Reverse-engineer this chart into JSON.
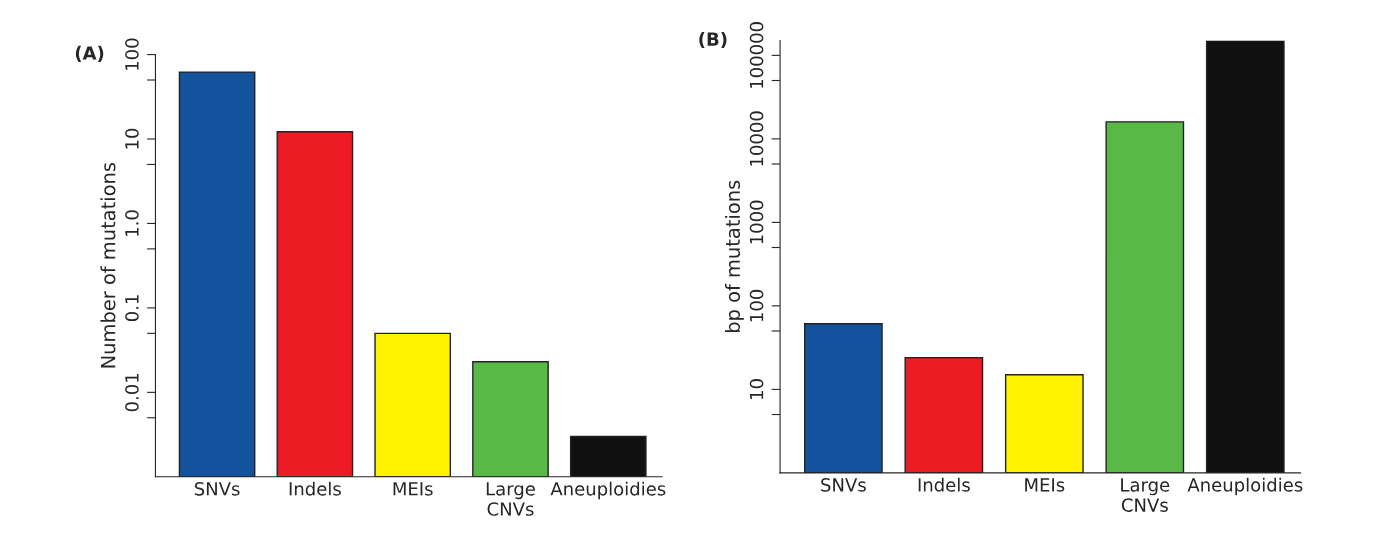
{
  "chart_data": [
    {
      "type": "bar",
      "title": "(A)",
      "ylabel": "Number of mutations",
      "log": "y",
      "categories": [
        "SNVs",
        "Indels",
        "MEIs",
        "Large\nCNVs",
        "Aneuploidies"
      ],
      "values": [
        62,
        12.2,
        0.05,
        0.023,
        0.003
      ],
      "colors": [
        "#13529c",
        "#ed1c24",
        "#fff200",
        "#58b947",
        "#111111"
      ],
      "ylim": [
        0.001,
        100
      ],
      "yticks": [
        {
          "value": 0.005,
          "label": null
        },
        0.01,
        {
          "value": 0.05,
          "label": null
        },
        0.1,
        {
          "value": 0.5,
          "label": null
        },
        {
          "value": 1,
          "label": "1.0"
        },
        {
          "value": 5,
          "label": null
        },
        10,
        {
          "value": 50,
          "label": null
        },
        100
      ],
      "grid": false,
      "legend": false
    },
    {
      "type": "bar",
      "title": "(B)",
      "ylabel": "bp of mutations",
      "log": "y",
      "categories": [
        "SNVs",
        "Indels",
        "MEIs",
        "Large\nCNVs",
        "Aneuploidies"
      ],
      "values": [
        61,
        24,
        15,
        16000,
        150000
      ],
      "colors": [
        "#13529c",
        "#ed1c24",
        "#fff200",
        "#58b947",
        "#111111"
      ],
      "ylim": [
        1,
        150000
      ],
      "yticks": [
        {
          "value": 5,
          "label": null
        },
        10,
        {
          "value": 50,
          "label": null
        },
        100,
        {
          "value": 500,
          "label": null
        },
        1000,
        {
          "value": 5000,
          "label": null
        },
        10000,
        {
          "value": 50000,
          "label": null
        },
        100000
      ],
      "grid": false,
      "legend": false
    }
  ]
}
